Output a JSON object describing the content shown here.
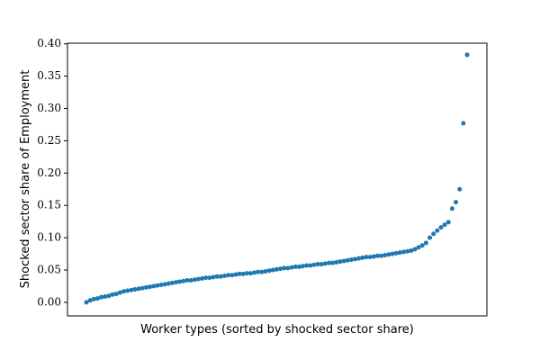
{
  "chart_data": {
    "type": "scatter",
    "x_label": "Worker types (sorted by shocked sector share)",
    "y_label": "Shocked sector share of Employment",
    "color": "#1f77b4",
    "ylim": [
      -0.021,
      0.401
    ],
    "yticks": [
      {
        "value": 0,
        "label": "0.00"
      },
      {
        "value": 0.05,
        "label": "0.05"
      },
      {
        "value": 0.1,
        "label": "0.10"
      },
      {
        "value": 0.15,
        "label": "0.15"
      },
      {
        "value": 0.2,
        "label": "0.20"
      },
      {
        "value": 0.25,
        "label": "0.25"
      },
      {
        "value": 0.3,
        "label": "0.30"
      },
      {
        "value": 0.35,
        "label": "0.35"
      },
      {
        "value": 0.4,
        "label": "0.40"
      }
    ],
    "values": [
      0.0,
      0.003,
      0.005,
      0.006,
      0.008,
      0.009,
      0.01,
      0.012,
      0.013,
      0.015,
      0.017,
      0.018,
      0.019,
      0.02,
      0.021,
      0.022,
      0.023,
      0.024,
      0.025,
      0.026,
      0.027,
      0.028,
      0.029,
      0.03,
      0.031,
      0.032,
      0.033,
      0.034,
      0.034,
      0.035,
      0.036,
      0.037,
      0.038,
      0.038,
      0.039,
      0.04,
      0.04,
      0.041,
      0.042,
      0.042,
      0.043,
      0.044,
      0.044,
      0.045,
      0.045,
      0.046,
      0.047,
      0.047,
      0.048,
      0.049,
      0.05,
      0.051,
      0.052,
      0.053,
      0.053,
      0.054,
      0.055,
      0.055,
      0.056,
      0.057,
      0.057,
      0.058,
      0.059,
      0.059,
      0.06,
      0.061,
      0.061,
      0.062,
      0.063,
      0.064,
      0.065,
      0.066,
      0.067,
      0.068,
      0.069,
      0.07,
      0.07,
      0.071,
      0.072,
      0.072,
      0.073,
      0.074,
      0.075,
      0.076,
      0.077,
      0.078,
      0.079,
      0.08,
      0.082,
      0.085,
      0.088,
      0.092,
      0.1,
      0.106,
      0.111,
      0.116,
      0.12,
      0.124,
      0.145,
      0.155,
      0.175,
      0.277,
      0.383
    ]
  }
}
